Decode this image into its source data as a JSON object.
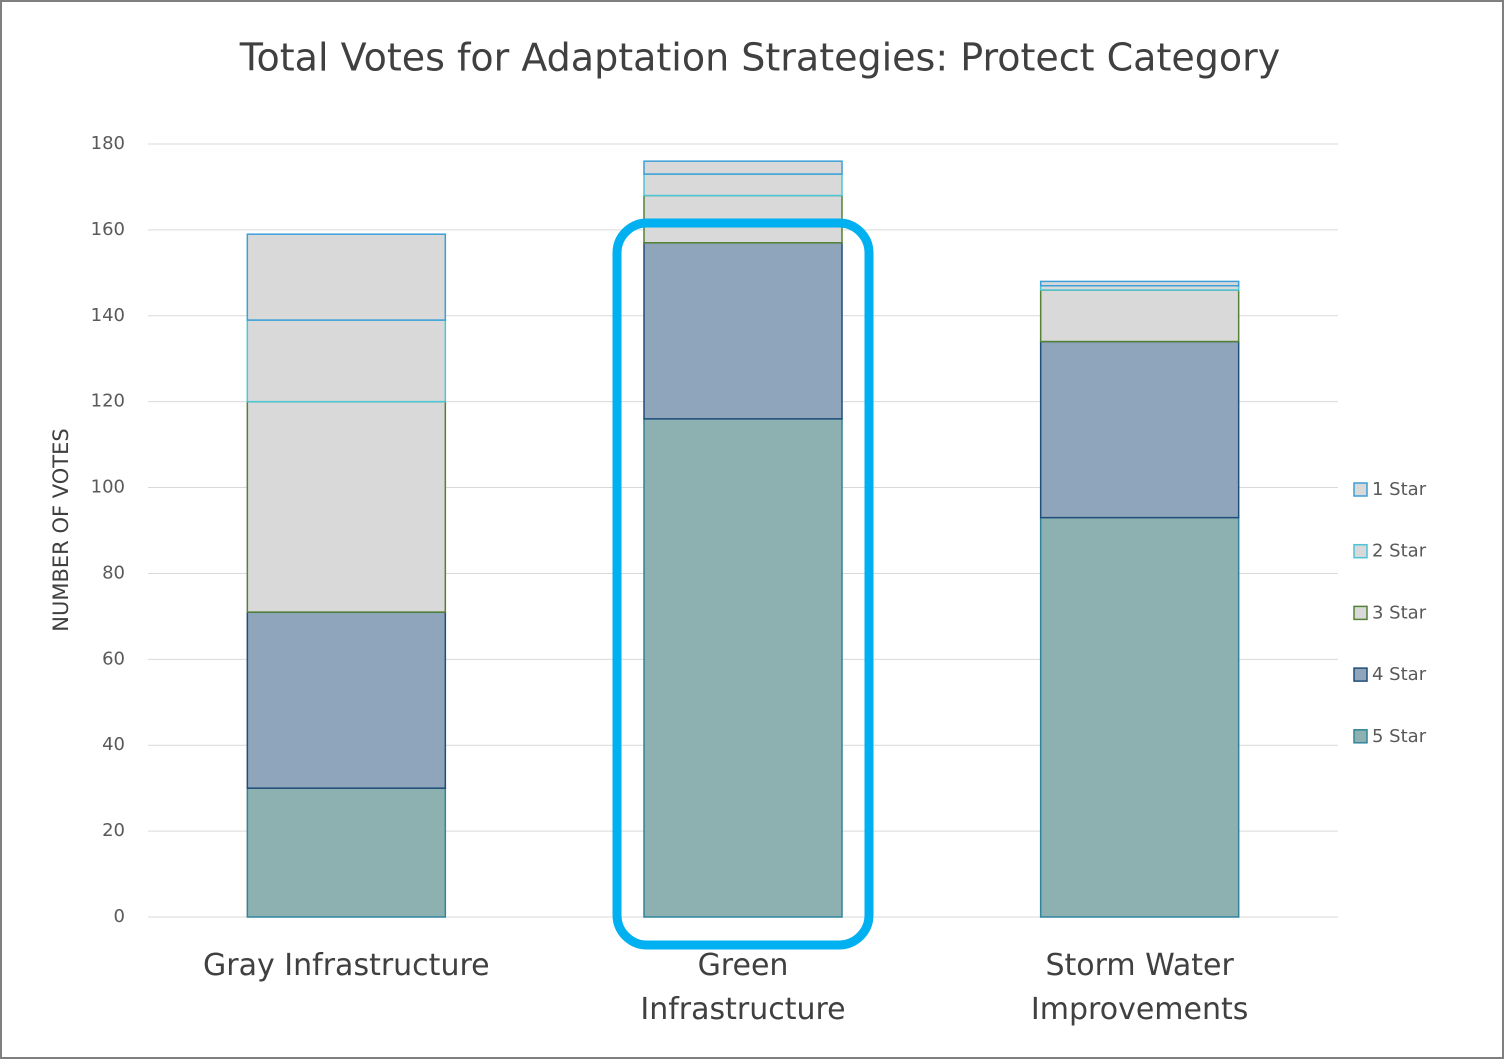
{
  "chart_data": {
    "type": "bar",
    "stacked": true,
    "title": "Total Votes for Adaptation Strategies: Protect Category",
    "y_label": "NUMBER OF VOTES",
    "categories": [
      "Gray Infrastructure",
      "Green Infrastructure",
      "Storm Water Improvements"
    ],
    "series": [
      {
        "name": "5 Star",
        "color": "#8db0b1",
        "edgecolor": "#31849b",
        "values": [
          30,
          116,
          93
        ]
      },
      {
        "name": "4 Star",
        "color": "#8ea5bb",
        "edgecolor": "#1f4e79",
        "values": [
          41,
          41,
          41
        ]
      },
      {
        "name": "3 Star",
        "color": "#d9d9d9",
        "edgecolor": "#548235",
        "values": [
          49,
          11,
          12
        ]
      },
      {
        "name": "2 Star",
        "color": "#d9d9d9",
        "edgecolor": "#4bc6d6",
        "values": [
          19,
          5,
          1
        ]
      },
      {
        "name": "1 Star",
        "color": "#d9d9d9",
        "edgecolor": "#3b9fd8",
        "values": [
          20,
          3,
          1
        ]
      }
    ],
    "ylim": [
      0,
      180
    ],
    "yticks": [
      0,
      20,
      40,
      60,
      80,
      100,
      120,
      140,
      160,
      180
    ],
    "grid": true,
    "legend": "right"
  }
}
